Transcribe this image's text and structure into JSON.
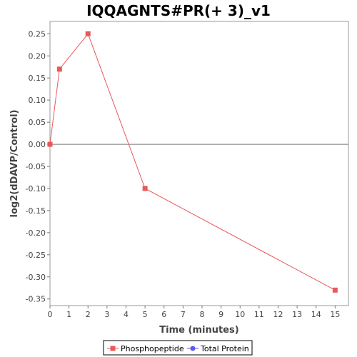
{
  "chart_data": {
    "type": "line",
    "title": "IQQAGNTS#PR(+ 3)_v1",
    "xlabel": "Time (minutes)",
    "ylabel": "log2(dDAVP/Control)",
    "xlim": [
      0,
      15.7
    ],
    "ylim": [
      -0.365,
      0.278
    ],
    "xticks": [
      0,
      1,
      2,
      3,
      4,
      5,
      6,
      7,
      8,
      9,
      10,
      11,
      12,
      13,
      14,
      15
    ],
    "yticks": [
      0.25,
      0.2,
      0.15,
      0.1,
      0.05,
      0.0,
      -0.05,
      -0.1,
      -0.15,
      -0.2,
      -0.25,
      -0.3,
      -0.35
    ],
    "zero_line": true,
    "grid": false,
    "legend_position": "bottom-center",
    "series": [
      {
        "name": "Phosphopeptide",
        "color": "#e8595a",
        "marker": "square",
        "x": [
          0,
          0.5,
          2,
          5,
          15
        ],
        "y": [
          0.0,
          0.17,
          0.25,
          -0.1,
          -0.33
        ]
      },
      {
        "name": "Total Protein",
        "color": "#5b5bef",
        "marker": "circle",
        "x": [],
        "y": []
      }
    ]
  }
}
